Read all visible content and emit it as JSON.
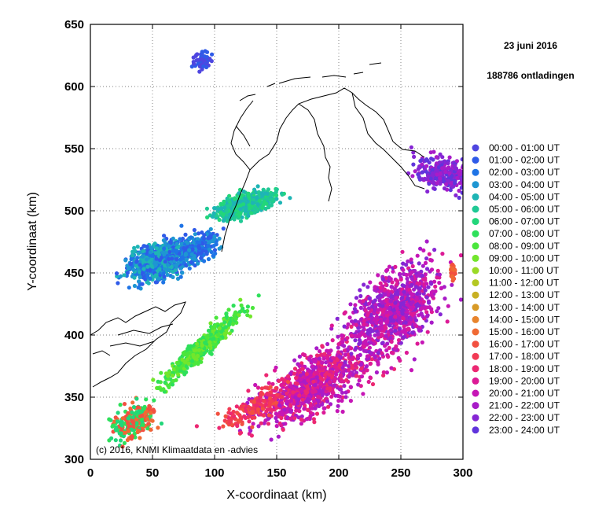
{
  "chart_data": {
    "type": "scatter",
    "date": "23 juni 2016",
    "count_text": "188786 ontladingen",
    "xlabel": "X-coordinaat (km)",
    "ylabel": "Y-coordinaat (km)",
    "xlim": [
      0,
      300
    ],
    "ylim": [
      300,
      650
    ],
    "x_ticks": [
      0,
      50,
      100,
      150,
      200,
      250,
      300
    ],
    "y_ticks": [
      300,
      350,
      400,
      450,
      500,
      550,
      600,
      650
    ],
    "grid": true,
    "legend_position": "right",
    "credit": "(c) 2016, KNMI Klimaatdata en -advies",
    "series": [
      {
        "name": "00:00 - 01:00 UT",
        "color": "#4f46e0"
      },
      {
        "name": "01:00 - 02:00 UT",
        "color": "#2f5be8"
      },
      {
        "name": "02:00 - 03:00 UT",
        "color": "#1f74e6"
      },
      {
        "name": "03:00 - 04:00 UT",
        "color": "#1e96d2"
      },
      {
        "name": "04:00 - 05:00 UT",
        "color": "#1eb5b5"
      },
      {
        "name": "05:00 - 06:00 UT",
        "color": "#20c995"
      },
      {
        "name": "06:00 - 07:00 UT",
        "color": "#22d67a"
      },
      {
        "name": "07:00 - 08:00 UT",
        "color": "#2ee05a"
      },
      {
        "name": "08:00 - 09:00 UT",
        "color": "#4ae63c"
      },
      {
        "name": "09:00 - 10:00 UT",
        "color": "#72e62c"
      },
      {
        "name": "10:00 - 11:00 UT",
        "color": "#9ada26"
      },
      {
        "name": "11:00 - 12:00 UT",
        "color": "#b4c822"
      },
      {
        "name": "12:00 - 13:00 UT",
        "color": "#c8b022"
      },
      {
        "name": "13:00 - 14:00 UT",
        "color": "#d89a26"
      },
      {
        "name": "14:00 - 15:00 UT",
        "color": "#e8842c"
      },
      {
        "name": "15:00 - 16:00 UT",
        "color": "#f06a34"
      },
      {
        "name": "16:00 - 17:00 UT",
        "color": "#f25040"
      },
      {
        "name": "17:00 - 18:00 UT",
        "color": "#f23a54"
      },
      {
        "name": "18:00 - 19:00 UT",
        "color": "#ec2872"
      },
      {
        "name": "19:00 - 20:00 UT",
        "color": "#dc1a96"
      },
      {
        "name": "20:00 - 21:00 UT",
        "color": "#c616b6"
      },
      {
        "name": "21:00 - 22:00 UT",
        "color": "#a81cc8"
      },
      {
        "name": "22:00 - 23:00 UT",
        "color": "#8626d4"
      },
      {
        "name": "23:00 - 24:00 UT",
        "color": "#6034dc"
      }
    ]
  }
}
